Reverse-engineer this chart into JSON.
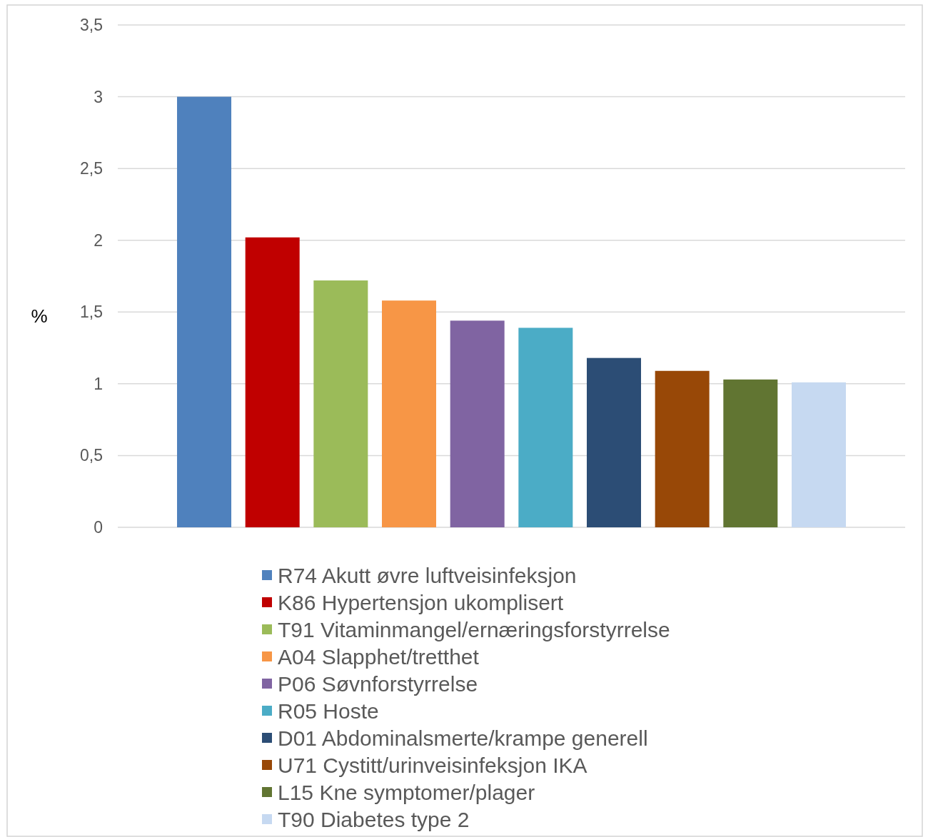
{
  "chart_data": {
    "type": "bar",
    "categories": [
      null
    ],
    "series": [
      {
        "name": "R74 Akutt øvre luftveisinfeksjon",
        "color": "#4f81bd",
        "values": [
          3.0
        ]
      },
      {
        "name": "K86 Hypertensjon ukomplisert",
        "color": "#c00000",
        "values": [
          2.02
        ]
      },
      {
        "name": "T91 Vitaminmangel/ernæringsforstyrrelse",
        "color": "#9bbb59",
        "values": [
          1.72
        ]
      },
      {
        "name": "A04 Slapphet/tretthet",
        "color": "#f79646",
        "values": [
          1.58
        ]
      },
      {
        "name": "P06 Søvnforstyrrelse",
        "color": "#8064a2",
        "values": [
          1.44
        ]
      },
      {
        "name": "R05 Hoste",
        "color": "#4bacc6",
        "values": [
          1.39
        ]
      },
      {
        "name": "D01 Abdominalsmerte/krampe generell",
        "color": "#2c4d75",
        "values": [
          1.18
        ]
      },
      {
        "name": "U71 Cystitt/urinveisinfeksjon IKA",
        "color": "#984807",
        "values": [
          1.09
        ]
      },
      {
        "name": "L15 Kne symptomer/plager",
        "color": "#617532",
        "values": [
          1.03
        ]
      },
      {
        "name": "T90 Diabetes type 2",
        "color": "#c6d9f1",
        "values": [
          1.01
        ]
      }
    ],
    "ylabel": "%",
    "ylim": [
      0,
      3.5
    ],
    "yticks": [
      0,
      {
        "value": 0.5,
        "label": "0,5"
      },
      1,
      {
        "value": 1.5,
        "label": "1,5"
      },
      2,
      {
        "value": 2.5,
        "label": "2,5"
      },
      3,
      {
        "value": 3.5,
        "label": "3,5"
      }
    ],
    "grid": "y",
    "legend": "bottom"
  }
}
